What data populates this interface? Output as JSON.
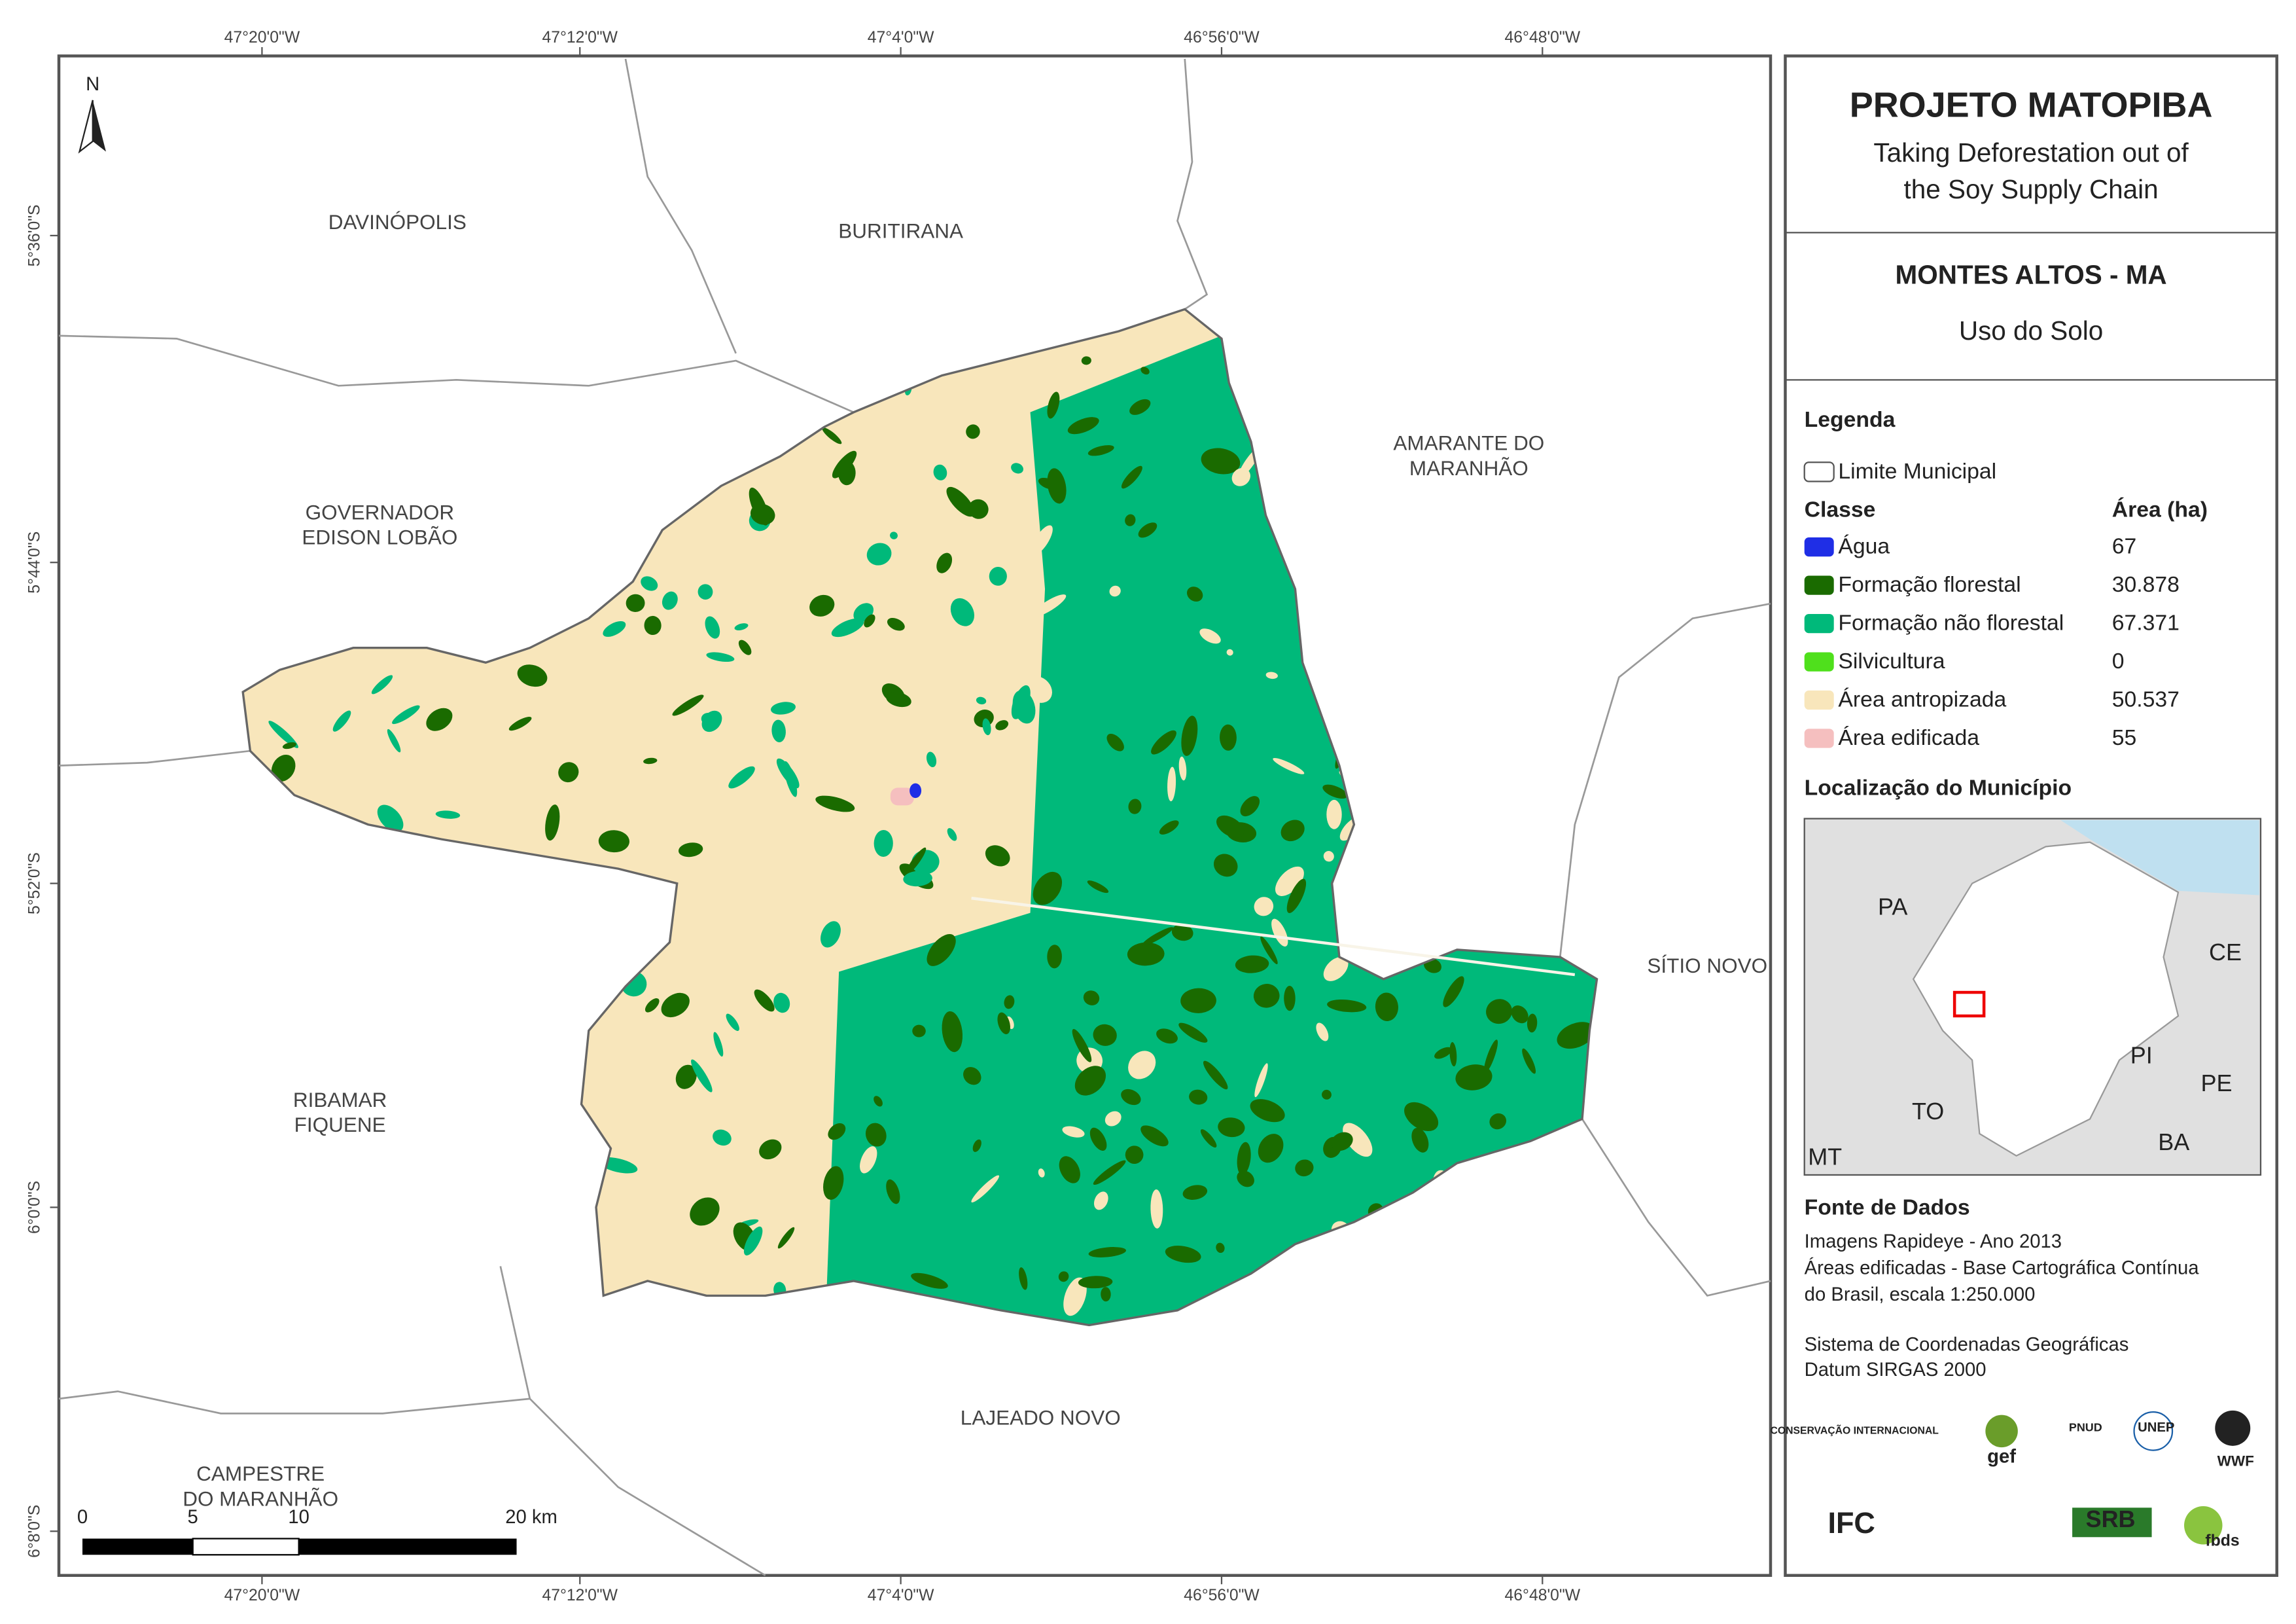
{
  "map": {
    "top_longitudes": [
      "47°20'0\"W",
      "47°12'0\"W",
      "47°4'0\"W",
      "46°56'0\"W",
      "46°48'0\"W"
    ],
    "bottom_longitudes": [
      "47°20'0\"W",
      "47°12'0\"W",
      "47°4'0\"W",
      "46°56'0\"W",
      "46°48'0\"W"
    ],
    "latitudes": [
      "5°36'0\"S",
      "5°44'0\"S",
      "5°52'0\"S",
      "6°0'0\"S",
      "6°8'0\"S"
    ],
    "north": "N",
    "neighbors": [
      {
        "lines": [
          "DAVINÓPOLIS"
        ]
      },
      {
        "lines": [
          "BURITIRANA"
        ]
      },
      {
        "lines": [
          "AMARANTE DO",
          "MARANHÃO"
        ]
      },
      {
        "lines": [
          "GOVERNADOR",
          "EDISON LOBÃO"
        ]
      },
      {
        "lines": [
          "SÍTIO NOVO"
        ]
      },
      {
        "lines": [
          "RIBAMAR",
          "FIQUENE"
        ]
      },
      {
        "lines": [
          "LAJEADO NOVO"
        ]
      },
      {
        "lines": [
          "CAMPESTRE",
          "DO MARANHÃO"
        ]
      }
    ],
    "scale_bar": [
      "0",
      "5",
      "10",
      "20 km"
    ]
  },
  "panel": {
    "title": "PROJETO MATOPIBA",
    "subtitle": [
      "Taking Deforestation out of",
      "the Soy Supply Chain"
    ],
    "municipality": "MONTES ALTOS - MA",
    "theme": "Uso do Solo",
    "legend_title": "Legenda",
    "limit_label": "Limite Municipal",
    "class_header": "Classe",
    "area_header": "Área (ha)",
    "classes": [
      {
        "name": "Água",
        "area": "67",
        "color": "#1f2ee6"
      },
      {
        "name": "Formação florestal",
        "area": "30.878",
        "color": "#1a6b00"
      },
      {
        "name": "Formação não florestal",
        "area": "67.371",
        "color": "#00b97a"
      },
      {
        "name": "Silvicultura",
        "area": "0",
        "color": "#4fe01c"
      },
      {
        "name": "Área antropizada",
        "area": "50.537",
        "color": "#f8e6bb"
      },
      {
        "name": "Área edificada",
        "area": "55",
        "color": "#f5bfbf"
      }
    ],
    "location_title": "Localização do Município",
    "inset_labels": [
      "PA",
      "CE",
      "PI",
      "PE",
      "TO",
      "BA",
      "MT"
    ],
    "sources_title": "Fonte de Dados",
    "sources": [
      "Imagens Rapideye - Ano 2013",
      "Áreas edificadas - Base Cartográfica Contínua",
      "do Brasil, escala 1:250.000",
      "Sistema de Coordenadas Geográficas",
      "Datum SIRGAS 2000"
    ],
    "logos": [
      "CONSERVAÇÃO INTERNACIONAL",
      "gef",
      "PNUD",
      "UNEP",
      "WWF",
      "IFC",
      "SRB",
      "fbds"
    ]
  }
}
